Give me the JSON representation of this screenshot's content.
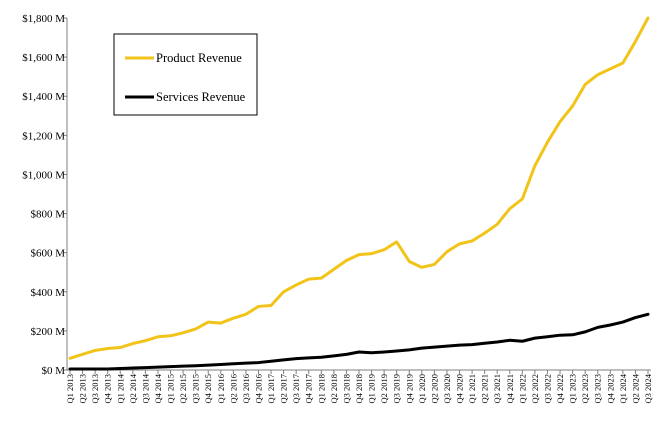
{
  "chart_data": {
    "type": "line",
    "title": "",
    "xlabel": "",
    "ylabel": "",
    "ylim": [
      0,
      1800
    ],
    "yticks": [
      {
        "value": 0,
        "label": "$0 M"
      },
      {
        "value": 200,
        "label": "$200 M"
      },
      {
        "value": 400,
        "label": "$400 M"
      },
      {
        "value": 600,
        "label": "$600 M"
      },
      {
        "value": 800,
        "label": "$800 M"
      },
      {
        "value": 1000,
        "label": "$1,000 M"
      },
      {
        "value": 1200,
        "label": "$1,200 M"
      },
      {
        "value": 1400,
        "label": "$1,400 M"
      },
      {
        "value": 1600,
        "label": "$1,600 M"
      },
      {
        "value": 1800,
        "label": "$1,800 M"
      }
    ],
    "grid": false,
    "legend_position": "top-left",
    "categories": [
      "Q1 2013",
      "Q2 2013",
      "Q3 2013",
      "Q4 2013",
      "Q1 2014",
      "Q2 2014",
      "Q3 2014",
      "Q4 2014",
      "Q1 2015",
      "Q2 2015",
      "Q3 2015",
      "Q4 2015",
      "Q1 2016",
      "Q2 2016",
      "Q3 2016",
      "Q4 2016",
      "Q1 2017",
      "Q2 2017",
      "Q3 2017",
      "Q4 2017",
      "Q1 2018",
      "Q2 2018",
      "Q3 2018",
      "Q4 2018",
      "Q1 2019",
      "Q2 2019",
      "Q3 2019",
      "Q4 2019",
      "Q1 2020",
      "Q2 2020",
      "Q3 2020",
      "Q4 2020",
      "Q1 2021",
      "Q2 2021",
      "Q3 2021",
      "Q4 2021",
      "Q1 2022",
      "Q2 2022",
      "Q3 2022",
      "Q4 2022",
      "Q1 2023",
      "Q2 2023",
      "Q3 2023",
      "Q4 2023",
      "Q1 2024",
      "Q2 2024",
      "Q3 2024"
    ],
    "series": [
      {
        "name": "Product Revenue",
        "color": "#f2c318",
        "values": [
          60,
          80,
          100,
          110,
          115,
          135,
          150,
          170,
          175,
          190,
          210,
          245,
          240,
          265,
          285,
          325,
          330,
          400,
          435,
          465,
          470,
          515,
          560,
          590,
          595,
          615,
          655,
          555,
          525,
          540,
          605,
          645,
          660,
          700,
          745,
          825,
          875,
          1045,
          1165,
          1270,
          1350,
          1460,
          1510,
          1540,
          1570,
          1680,
          1800
        ]
      },
      {
        "name": "Services Revenue",
        "color": "#000000",
        "values": [
          5,
          5,
          5,
          5,
          8,
          10,
          12,
          15,
          17,
          20,
          22,
          25,
          28,
          32,
          35,
          38,
          45,
          52,
          58,
          62,
          65,
          72,
          80,
          92,
          88,
          92,
          97,
          103,
          112,
          117,
          122,
          127,
          130,
          137,
          143,
          152,
          147,
          163,
          170,
          178,
          180,
          195,
          218,
          230,
          245,
          268,
          285
        ]
      }
    ]
  }
}
